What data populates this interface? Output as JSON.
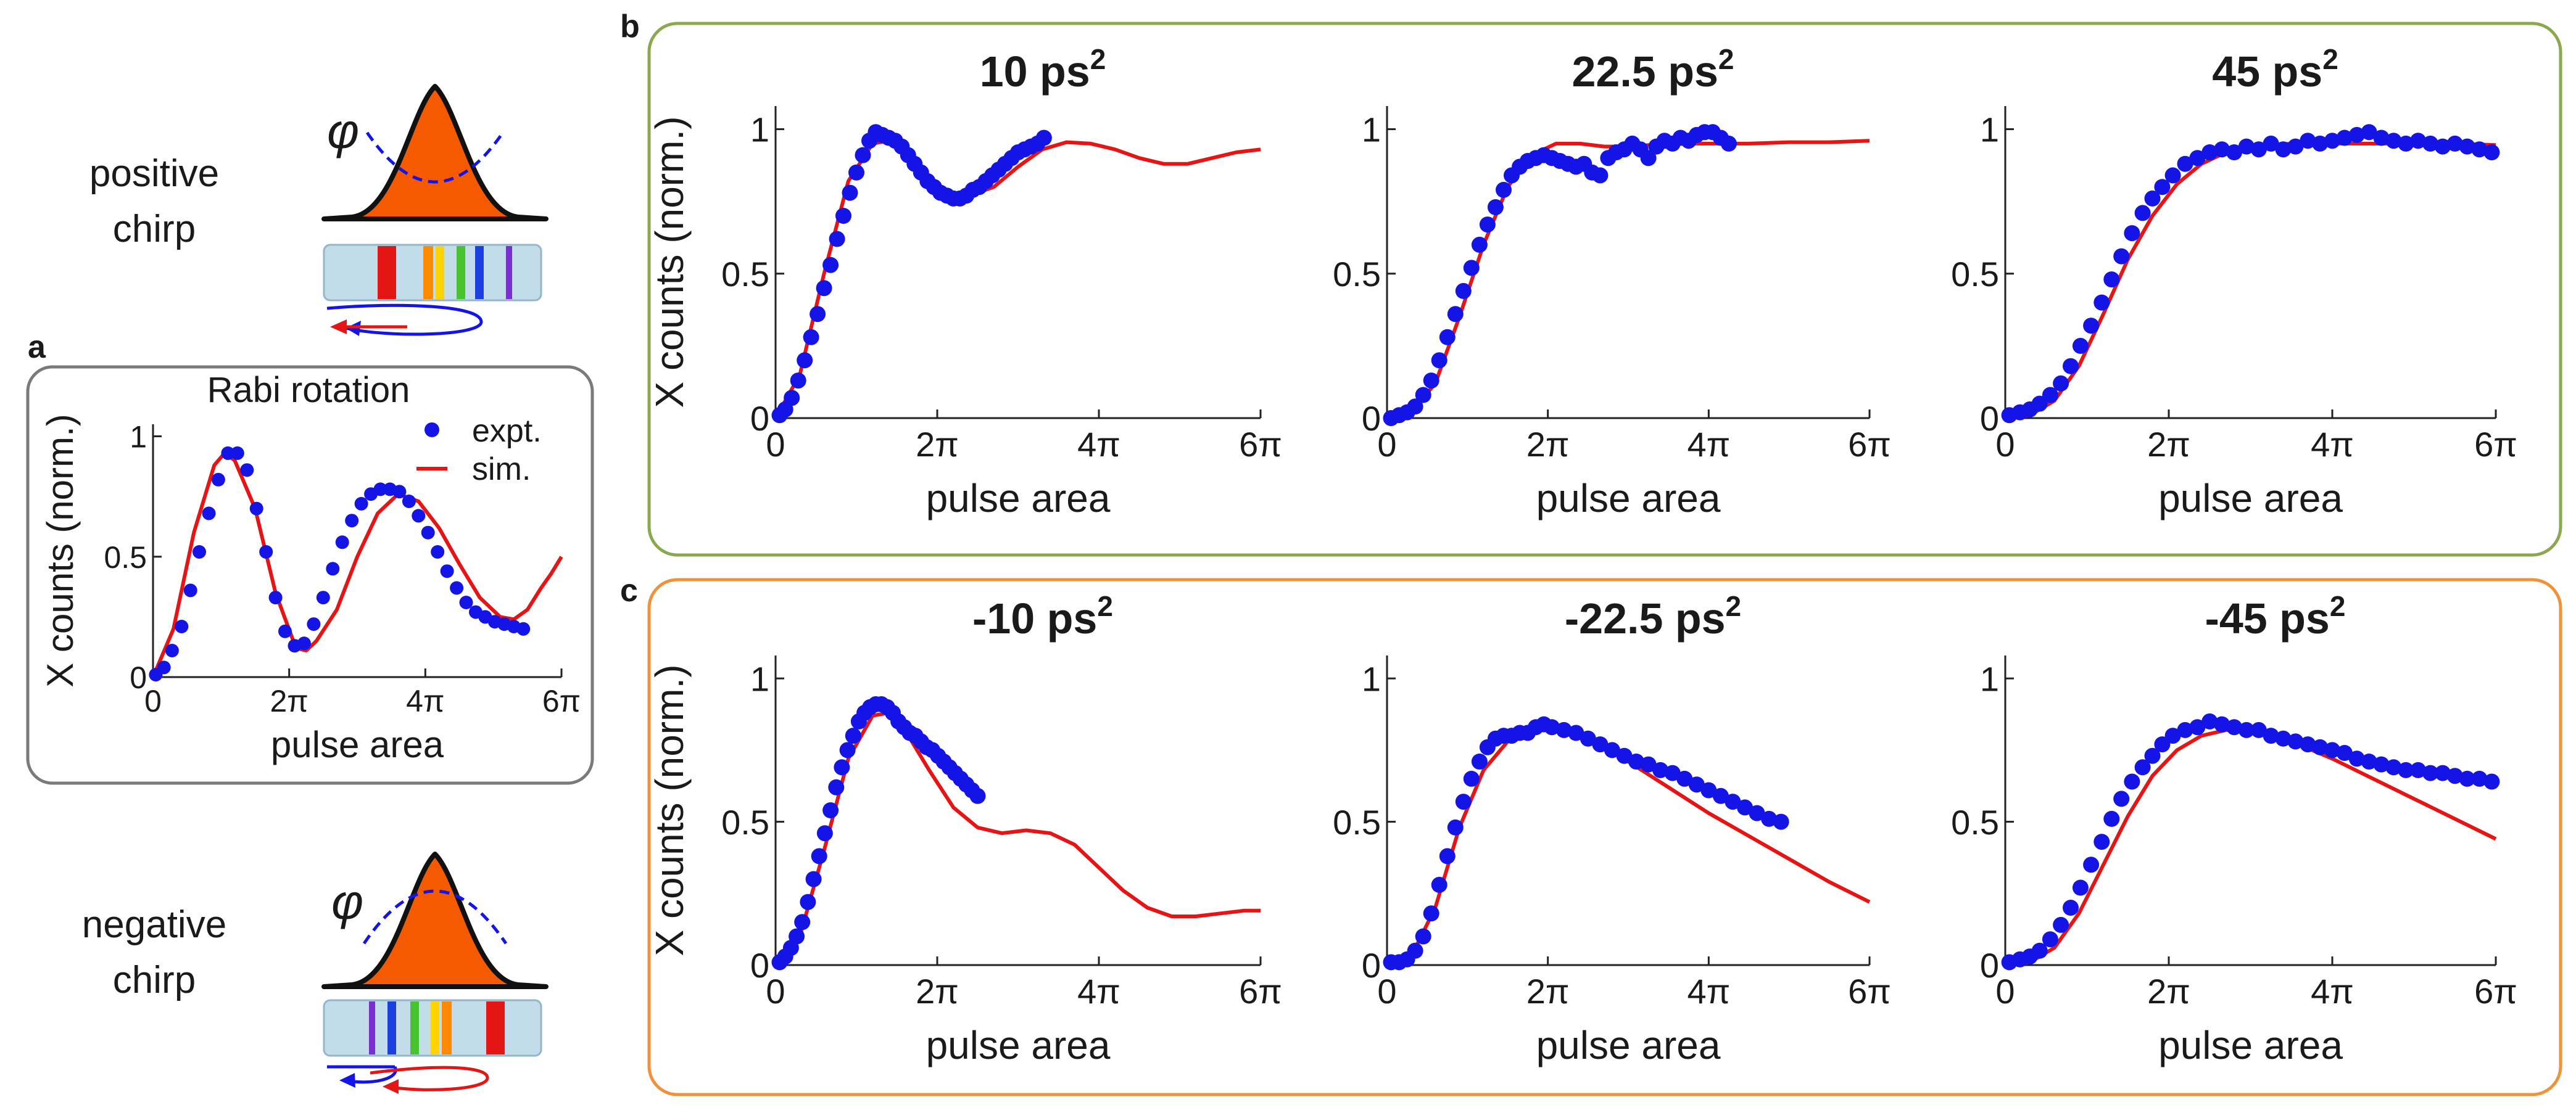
{
  "panel_labels": {
    "a": "a",
    "b": "b",
    "c": "c"
  },
  "side": {
    "positive": {
      "line1": "positive",
      "line2": "chirp",
      "phi": "φ"
    },
    "negative": {
      "line1": "negative",
      "line2": "chirp",
      "phi": "φ"
    }
  },
  "colors": {
    "expt": "#1414e6",
    "sim": "#e61414",
    "pulse_fill": "#f55a00",
    "frame_a": "#7a7a7a",
    "frame_b": "#8aa84e",
    "frame_c": "#f0923a"
  },
  "chart_data": [
    {
      "id": "a",
      "type": "scatter+line",
      "title": "Rabi rotation",
      "xlabel": "pulse area",
      "ylabel": "X counts (norm.)",
      "xlim": [
        0,
        6
      ],
      "ylim": [
        0,
        1.05
      ],
      "xticks": [
        0,
        2,
        4,
        6
      ],
      "xtick_labels": [
        "0",
        "2π",
        "4π",
        "6π"
      ],
      "yticks": [
        0,
        0.5,
        1
      ],
      "ytick_labels": [
        "0",
        "0.5",
        "1"
      ],
      "legend": {
        "expt": "expt.",
        "sim": "sim.",
        "position": "top-right"
      },
      "expt": {
        "name": "expt.",
        "x": [
          0.04,
          0.16,
          0.28,
          0.42,
          0.55,
          0.68,
          0.82,
          0.96,
          1.1,
          1.24,
          1.38,
          1.52,
          1.66,
          1.8,
          1.94,
          2.08,
          2.22,
          2.36,
          2.5,
          2.64,
          2.78,
          2.92,
          3.06,
          3.2,
          3.34,
          3.48,
          3.62,
          3.76,
          3.9,
          4.04,
          4.18,
          4.32,
          4.46,
          4.6,
          4.74,
          4.88,
          5.02,
          5.16,
          5.3,
          5.44
        ],
        "y": [
          0.01,
          0.04,
          0.11,
          0.21,
          0.36,
          0.52,
          0.68,
          0.82,
          0.93,
          0.93,
          0.86,
          0.7,
          0.52,
          0.33,
          0.19,
          0.13,
          0.14,
          0.22,
          0.33,
          0.45,
          0.56,
          0.65,
          0.72,
          0.76,
          0.78,
          0.78,
          0.77,
          0.73,
          0.67,
          0.6,
          0.52,
          0.44,
          0.37,
          0.31,
          0.27,
          0.25,
          0.23,
          0.22,
          0.21,
          0.2
        ]
      },
      "sim": {
        "name": "sim.",
        "x": [
          0,
          0.3,
          0.6,
          0.9,
          1.05,
          1.2,
          1.5,
          1.8,
          2.1,
          2.25,
          2.4,
          2.7,
          3,
          3.3,
          3.6,
          3.9,
          4.2,
          4.5,
          4.8,
          5.1,
          5.3,
          5.5,
          5.7,
          5.85,
          6
        ],
        "y": [
          0,
          0.2,
          0.6,
          0.88,
          0.93,
          0.9,
          0.7,
          0.35,
          0.12,
          0.11,
          0.15,
          0.28,
          0.5,
          0.68,
          0.76,
          0.73,
          0.62,
          0.47,
          0.33,
          0.25,
          0.24,
          0.28,
          0.37,
          0.43,
          0.5
        ]
      }
    },
    {
      "id": "b1",
      "type": "scatter+line",
      "title": "10 ps",
      "title_sup": "2",
      "xlabel": "pulse area",
      "ylabel": "X counts (norm.)",
      "xlim": [
        0,
        6
      ],
      "ylim": [
        0,
        1.08
      ],
      "xticks": [
        0,
        2,
        4,
        6
      ],
      "xtick_labels": [
        "0",
        "2π",
        "4π",
        "6π"
      ],
      "yticks": [
        0,
        0.5,
        1
      ],
      "ytick_labels": [
        "0",
        "0.5",
        "1"
      ],
      "expt": {
        "name": "expt.",
        "x": [
          0.05,
          0.12,
          0.2,
          0.28,
          0.36,
          0.44,
          0.52,
          0.6,
          0.68,
          0.76,
          0.84,
          0.92,
          1,
          1.08,
          1.16,
          1.24,
          1.32,
          1.4,
          1.48,
          1.56,
          1.64,
          1.72,
          1.8,
          1.88,
          1.96,
          2.04,
          2.12,
          2.2,
          2.28,
          2.36,
          2.44,
          2.52,
          2.6,
          2.68,
          2.76,
          2.84,
          2.92,
          3,
          3.08,
          3.16,
          3.24,
          3.32
        ],
        "y": [
          0.01,
          0.03,
          0.07,
          0.13,
          0.2,
          0.28,
          0.36,
          0.45,
          0.53,
          0.62,
          0.7,
          0.78,
          0.85,
          0.91,
          0.96,
          0.99,
          0.98,
          0.97,
          0.96,
          0.94,
          0.91,
          0.88,
          0.85,
          0.82,
          0.8,
          0.78,
          0.77,
          0.76,
          0.76,
          0.77,
          0.79,
          0.8,
          0.82,
          0.84,
          0.86,
          0.88,
          0.9,
          0.92,
          0.93,
          0.94,
          0.95,
          0.97
        ]
      },
      "sim": {
        "name": "sim.",
        "x": [
          0,
          0.3,
          0.6,
          0.9,
          1.2,
          1.4,
          1.6,
          1.9,
          2.2,
          2.4,
          2.7,
          3,
          3.3,
          3.6,
          3.9,
          4.2,
          4.5,
          4.8,
          5.1,
          5.4,
          5.7,
          6
        ],
        "y": [
          0,
          0.15,
          0.5,
          0.82,
          0.95,
          0.96,
          0.92,
          0.83,
          0.77,
          0.77,
          0.8,
          0.87,
          0.93,
          0.955,
          0.95,
          0.93,
          0.9,
          0.88,
          0.88,
          0.9,
          0.92,
          0.93
        ]
      }
    },
    {
      "id": "b2",
      "type": "scatter+line",
      "title": "22.5 ps",
      "title_sup": "2",
      "xlabel": "pulse area",
      "ylabel": "",
      "xlim": [
        0,
        6
      ],
      "ylim": [
        0,
        1.08
      ],
      "xticks": [
        0,
        2,
        4,
        6
      ],
      "xtick_labels": [
        "0",
        "2π",
        "4π",
        "6π"
      ],
      "yticks": [
        0,
        0.5,
        1
      ],
      "ytick_labels": [
        "0",
        "0.5",
        "1"
      ],
      "expt": {
        "name": "expt.",
        "x": [
          0.05,
          0.15,
          0.25,
          0.35,
          0.45,
          0.55,
          0.65,
          0.75,
          0.85,
          0.95,
          1.05,
          1.15,
          1.25,
          1.35,
          1.45,
          1.55,
          1.65,
          1.75,
          1.85,
          1.95,
          2.05,
          2.15,
          2.25,
          2.35,
          2.45,
          2.55,
          2.65,
          2.75,
          2.85,
          2.95,
          3.05,
          3.15,
          3.25,
          3.35,
          3.45,
          3.55,
          3.65,
          3.75,
          3.85,
          3.95,
          4.05,
          4.15,
          4.25
        ],
        "y": [
          0,
          0.01,
          0.02,
          0.04,
          0.08,
          0.13,
          0.2,
          0.28,
          0.36,
          0.44,
          0.52,
          0.6,
          0.67,
          0.73,
          0.79,
          0.84,
          0.87,
          0.89,
          0.9,
          0.91,
          0.9,
          0.89,
          0.88,
          0.87,
          0.88,
          0.85,
          0.84,
          0.9,
          0.92,
          0.93,
          0.95,
          0.93,
          0.9,
          0.94,
          0.96,
          0.95,
          0.97,
          0.96,
          0.98,
          0.99,
          0.99,
          0.97,
          0.95
        ]
      },
      "sim": {
        "name": "sim.",
        "x": [
          0,
          0.3,
          0.6,
          0.9,
          1.2,
          1.5,
          1.8,
          2.1,
          2.4,
          2.7,
          3,
          3.5,
          4,
          4.5,
          5,
          5.5,
          6
        ],
        "y": [
          0,
          0.02,
          0.12,
          0.35,
          0.6,
          0.8,
          0.91,
          0.95,
          0.95,
          0.94,
          0.94,
          0.95,
          0.95,
          0.95,
          0.955,
          0.955,
          0.96
        ]
      }
    },
    {
      "id": "b3",
      "type": "scatter+line",
      "title": "45 ps",
      "title_sup": "2",
      "xlabel": "pulse area",
      "ylabel": "",
      "xlim": [
        0,
        6
      ],
      "ylim": [
        0,
        1.08
      ],
      "xticks": [
        0,
        2,
        4,
        6
      ],
      "xtick_labels": [
        "0",
        "2π",
        "4π",
        "6π"
      ],
      "yticks": [
        0,
        0.5,
        1
      ],
      "ytick_labels": [
        "0",
        "0.5",
        "1"
      ],
      "expt": {
        "name": "expt.",
        "x": [
          0.05,
          0.18,
          0.3,
          0.42,
          0.55,
          0.68,
          0.8,
          0.92,
          1.05,
          1.18,
          1.3,
          1.42,
          1.55,
          1.68,
          1.8,
          1.92,
          2.05,
          2.2,
          2.35,
          2.5,
          2.65,
          2.8,
          2.95,
          3.1,
          3.25,
          3.4,
          3.55,
          3.7,
          3.85,
          4,
          4.15,
          4.3,
          4.45,
          4.6,
          4.75,
          4.9,
          5.05,
          5.2,
          5.35,
          5.5,
          5.65,
          5.8,
          5.95
        ],
        "y": [
          0.01,
          0.02,
          0.03,
          0.05,
          0.08,
          0.12,
          0.18,
          0.25,
          0.32,
          0.4,
          0.48,
          0.56,
          0.64,
          0.71,
          0.76,
          0.8,
          0.84,
          0.88,
          0.9,
          0.92,
          0.93,
          0.92,
          0.94,
          0.93,
          0.95,
          0.93,
          0.94,
          0.96,
          0.95,
          0.96,
          0.97,
          0.98,
          0.99,
          0.97,
          0.96,
          0.95,
          0.96,
          0.95,
          0.94,
          0.95,
          0.94,
          0.93,
          0.92
        ]
      },
      "sim": {
        "name": "sim.",
        "x": [
          0,
          0.3,
          0.6,
          0.9,
          1.2,
          1.5,
          1.8,
          2.1,
          2.4,
          2.7,
          3,
          3.5,
          4,
          4.5,
          5,
          5.5,
          6
        ],
        "y": [
          0,
          0.01,
          0.06,
          0.18,
          0.36,
          0.55,
          0.7,
          0.81,
          0.88,
          0.92,
          0.94,
          0.95,
          0.95,
          0.95,
          0.95,
          0.95,
          0.945
        ]
      }
    },
    {
      "id": "c1",
      "type": "scatter+line",
      "title": "-10 ps",
      "title_sup": "2",
      "xlabel": "pulse area",
      "ylabel": "X counts (norm.)",
      "xlim": [
        0,
        6
      ],
      "ylim": [
        0,
        1.08
      ],
      "xticks": [
        0,
        2,
        4,
        6
      ],
      "xtick_labels": [
        "0",
        "2π",
        "4π",
        "6π"
      ],
      "yticks": [
        0,
        0.5,
        1
      ],
      "ytick_labels": [
        "0",
        "0.5",
        "1"
      ],
      "expt": {
        "name": "expt.",
        "x": [
          0.05,
          0.12,
          0.19,
          0.26,
          0.33,
          0.4,
          0.47,
          0.54,
          0.61,
          0.68,
          0.75,
          0.82,
          0.89,
          0.96,
          1.03,
          1.1,
          1.17,
          1.24,
          1.31,
          1.38,
          1.45,
          1.52,
          1.59,
          1.66,
          1.73,
          1.8,
          1.87,
          1.94,
          2.01,
          2.08,
          2.15,
          2.22,
          2.29,
          2.36,
          2.43,
          2.5
        ],
        "y": [
          0.01,
          0.03,
          0.06,
          0.1,
          0.15,
          0.22,
          0.3,
          0.38,
          0.46,
          0.54,
          0.62,
          0.69,
          0.75,
          0.8,
          0.85,
          0.88,
          0.9,
          0.91,
          0.91,
          0.9,
          0.88,
          0.85,
          0.83,
          0.81,
          0.8,
          0.78,
          0.76,
          0.75,
          0.73,
          0.71,
          0.69,
          0.67,
          0.65,
          0.63,
          0.61,
          0.59
        ]
      },
      "sim": {
        "name": "sim.",
        "x": [
          0,
          0.3,
          0.6,
          0.9,
          1.2,
          1.4,
          1.6,
          1.9,
          2.2,
          2.5,
          2.8,
          3.1,
          3.4,
          3.7,
          4,
          4.3,
          4.6,
          4.9,
          5.2,
          5.5,
          5.8,
          6
        ],
        "y": [
          0,
          0.1,
          0.4,
          0.72,
          0.87,
          0.88,
          0.82,
          0.68,
          0.55,
          0.48,
          0.46,
          0.47,
          0.46,
          0.42,
          0.34,
          0.26,
          0.2,
          0.17,
          0.17,
          0.18,
          0.19,
          0.19
        ]
      }
    },
    {
      "id": "c2",
      "type": "scatter+line",
      "title": "-22.5 ps",
      "title_sup": "2",
      "xlabel": "pulse area",
      "ylabel": "",
      "xlim": [
        0,
        6
      ],
      "ylim": [
        0,
        1.08
      ],
      "xticks": [
        0,
        2,
        4,
        6
      ],
      "xtick_labels": [
        "0",
        "2π",
        "4π",
        "6π"
      ],
      "yticks": [
        0,
        0.5,
        1
      ],
      "ytick_labels": [
        "0",
        "0.5",
        "1"
      ],
      "expt": {
        "name": "expt.",
        "x": [
          0.05,
          0.15,
          0.25,
          0.35,
          0.45,
          0.55,
          0.65,
          0.75,
          0.85,
          0.95,
          1.05,
          1.15,
          1.25,
          1.35,
          1.45,
          1.55,
          1.65,
          1.75,
          1.85,
          1.95,
          2.05,
          2.2,
          2.35,
          2.5,
          2.65,
          2.8,
          2.95,
          3.1,
          3.25,
          3.4,
          3.55,
          3.7,
          3.85,
          4,
          4.15,
          4.3,
          4.45,
          4.6,
          4.75,
          4.9
        ],
        "y": [
          0.01,
          0.01,
          0.02,
          0.05,
          0.1,
          0.18,
          0.28,
          0.38,
          0.48,
          0.57,
          0.65,
          0.71,
          0.76,
          0.79,
          0.8,
          0.8,
          0.81,
          0.81,
          0.83,
          0.84,
          0.83,
          0.82,
          0.81,
          0.79,
          0.77,
          0.75,
          0.73,
          0.71,
          0.7,
          0.68,
          0.67,
          0.65,
          0.63,
          0.61,
          0.59,
          0.57,
          0.55,
          0.53,
          0.51,
          0.5
        ]
      },
      "sim": {
        "name": "sim.",
        "x": [
          0,
          0.3,
          0.6,
          0.9,
          1.2,
          1.5,
          1.8,
          2.1,
          2.4,
          2.7,
          3,
          3.5,
          4,
          4.5,
          5,
          5.5,
          6
        ],
        "y": [
          0,
          0.03,
          0.2,
          0.48,
          0.68,
          0.78,
          0.83,
          0.83,
          0.8,
          0.76,
          0.71,
          0.62,
          0.53,
          0.45,
          0.37,
          0.29,
          0.22
        ]
      }
    },
    {
      "id": "c3",
      "type": "scatter+line",
      "title": "-45 ps",
      "title_sup": "2",
      "xlabel": "pulse area",
      "ylabel": "",
      "xlim": [
        0,
        6
      ],
      "ylim": [
        0,
        1.08
      ],
      "xticks": [
        0,
        2,
        4,
        6
      ],
      "xtick_labels": [
        "0",
        "2π",
        "4π",
        "6π"
      ],
      "yticks": [
        0,
        0.5,
        1
      ],
      "ytick_labels": [
        "0",
        "0.5",
        "1"
      ],
      "expt": {
        "name": "expt.",
        "x": [
          0.05,
          0.18,
          0.3,
          0.42,
          0.55,
          0.68,
          0.8,
          0.92,
          1.05,
          1.18,
          1.3,
          1.42,
          1.55,
          1.68,
          1.8,
          1.92,
          2.05,
          2.2,
          2.35,
          2.5,
          2.65,
          2.8,
          2.95,
          3.1,
          3.25,
          3.4,
          3.55,
          3.7,
          3.85,
          4,
          4.15,
          4.3,
          4.45,
          4.6,
          4.75,
          4.9,
          5.05,
          5.2,
          5.35,
          5.5,
          5.65,
          5.8,
          5.95
        ],
        "y": [
          0.01,
          0.02,
          0.03,
          0.05,
          0.09,
          0.14,
          0.2,
          0.27,
          0.35,
          0.43,
          0.51,
          0.58,
          0.64,
          0.69,
          0.73,
          0.77,
          0.8,
          0.82,
          0.83,
          0.85,
          0.84,
          0.83,
          0.82,
          0.82,
          0.8,
          0.79,
          0.78,
          0.77,
          0.76,
          0.75,
          0.74,
          0.72,
          0.71,
          0.7,
          0.69,
          0.68,
          0.68,
          0.67,
          0.67,
          0.66,
          0.65,
          0.65,
          0.64
        ]
      },
      "sim": {
        "name": "sim.",
        "x": [
          0,
          0.3,
          0.6,
          0.9,
          1.2,
          1.5,
          1.8,
          2.1,
          2.4,
          2.7,
          3,
          3.5,
          4,
          4.5,
          5,
          5.5,
          6
        ],
        "y": [
          0,
          0.01,
          0.06,
          0.18,
          0.35,
          0.52,
          0.66,
          0.75,
          0.8,
          0.82,
          0.82,
          0.78,
          0.72,
          0.65,
          0.58,
          0.51,
          0.44
        ]
      }
    }
  ]
}
